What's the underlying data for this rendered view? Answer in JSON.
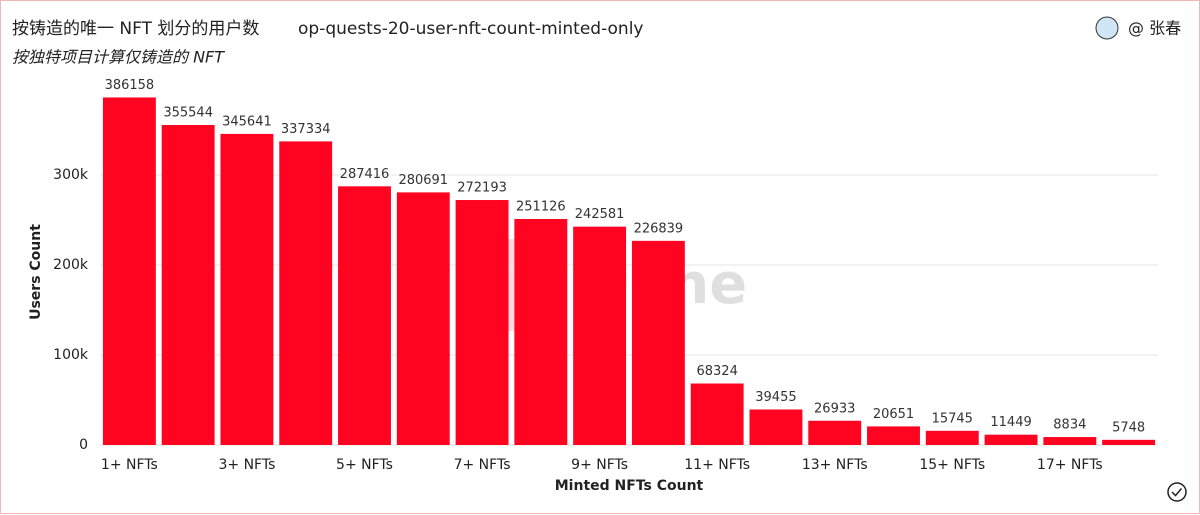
{
  "chart_data": {
    "type": "bar",
    "title": "按铸造的唯一 NFT 划分的用户数",
    "query_name": "op-quests-20-user-nft-count-minted-only",
    "subtitle": "按独特项目计算仅铸造的 NFT",
    "author": "@ 张春",
    "watermark": "Dune",
    "x_label": "Minted NFTs Count",
    "y_label": "Users Count",
    "categories": [
      "1+ NFTs",
      null,
      "3+ NFTs",
      null,
      "5+ NFTs",
      null,
      "7+ NFTs",
      null,
      "9+ NFTs",
      null,
      "11+ NFTs",
      null,
      "13+ NFTs",
      null,
      "15+ NFTs",
      null,
      "17+ NFTs",
      null
    ],
    "values": [
      386158,
      355544,
      345641,
      337334,
      287416,
      280691,
      272193,
      251126,
      242581,
      226839,
      68324,
      39455,
      26933,
      20651,
      15745,
      11449,
      8834,
      5748
    ],
    "color": "#ff0420",
    "ylim": [
      0,
      400000
    ],
    "yticks": [
      0,
      {
        "value": 100000,
        "label": "100k"
      },
      {
        "value": 200000,
        "label": "200k"
      },
      {
        "value": 300000,
        "label": "300k"
      }
    ],
    "grid": true
  }
}
